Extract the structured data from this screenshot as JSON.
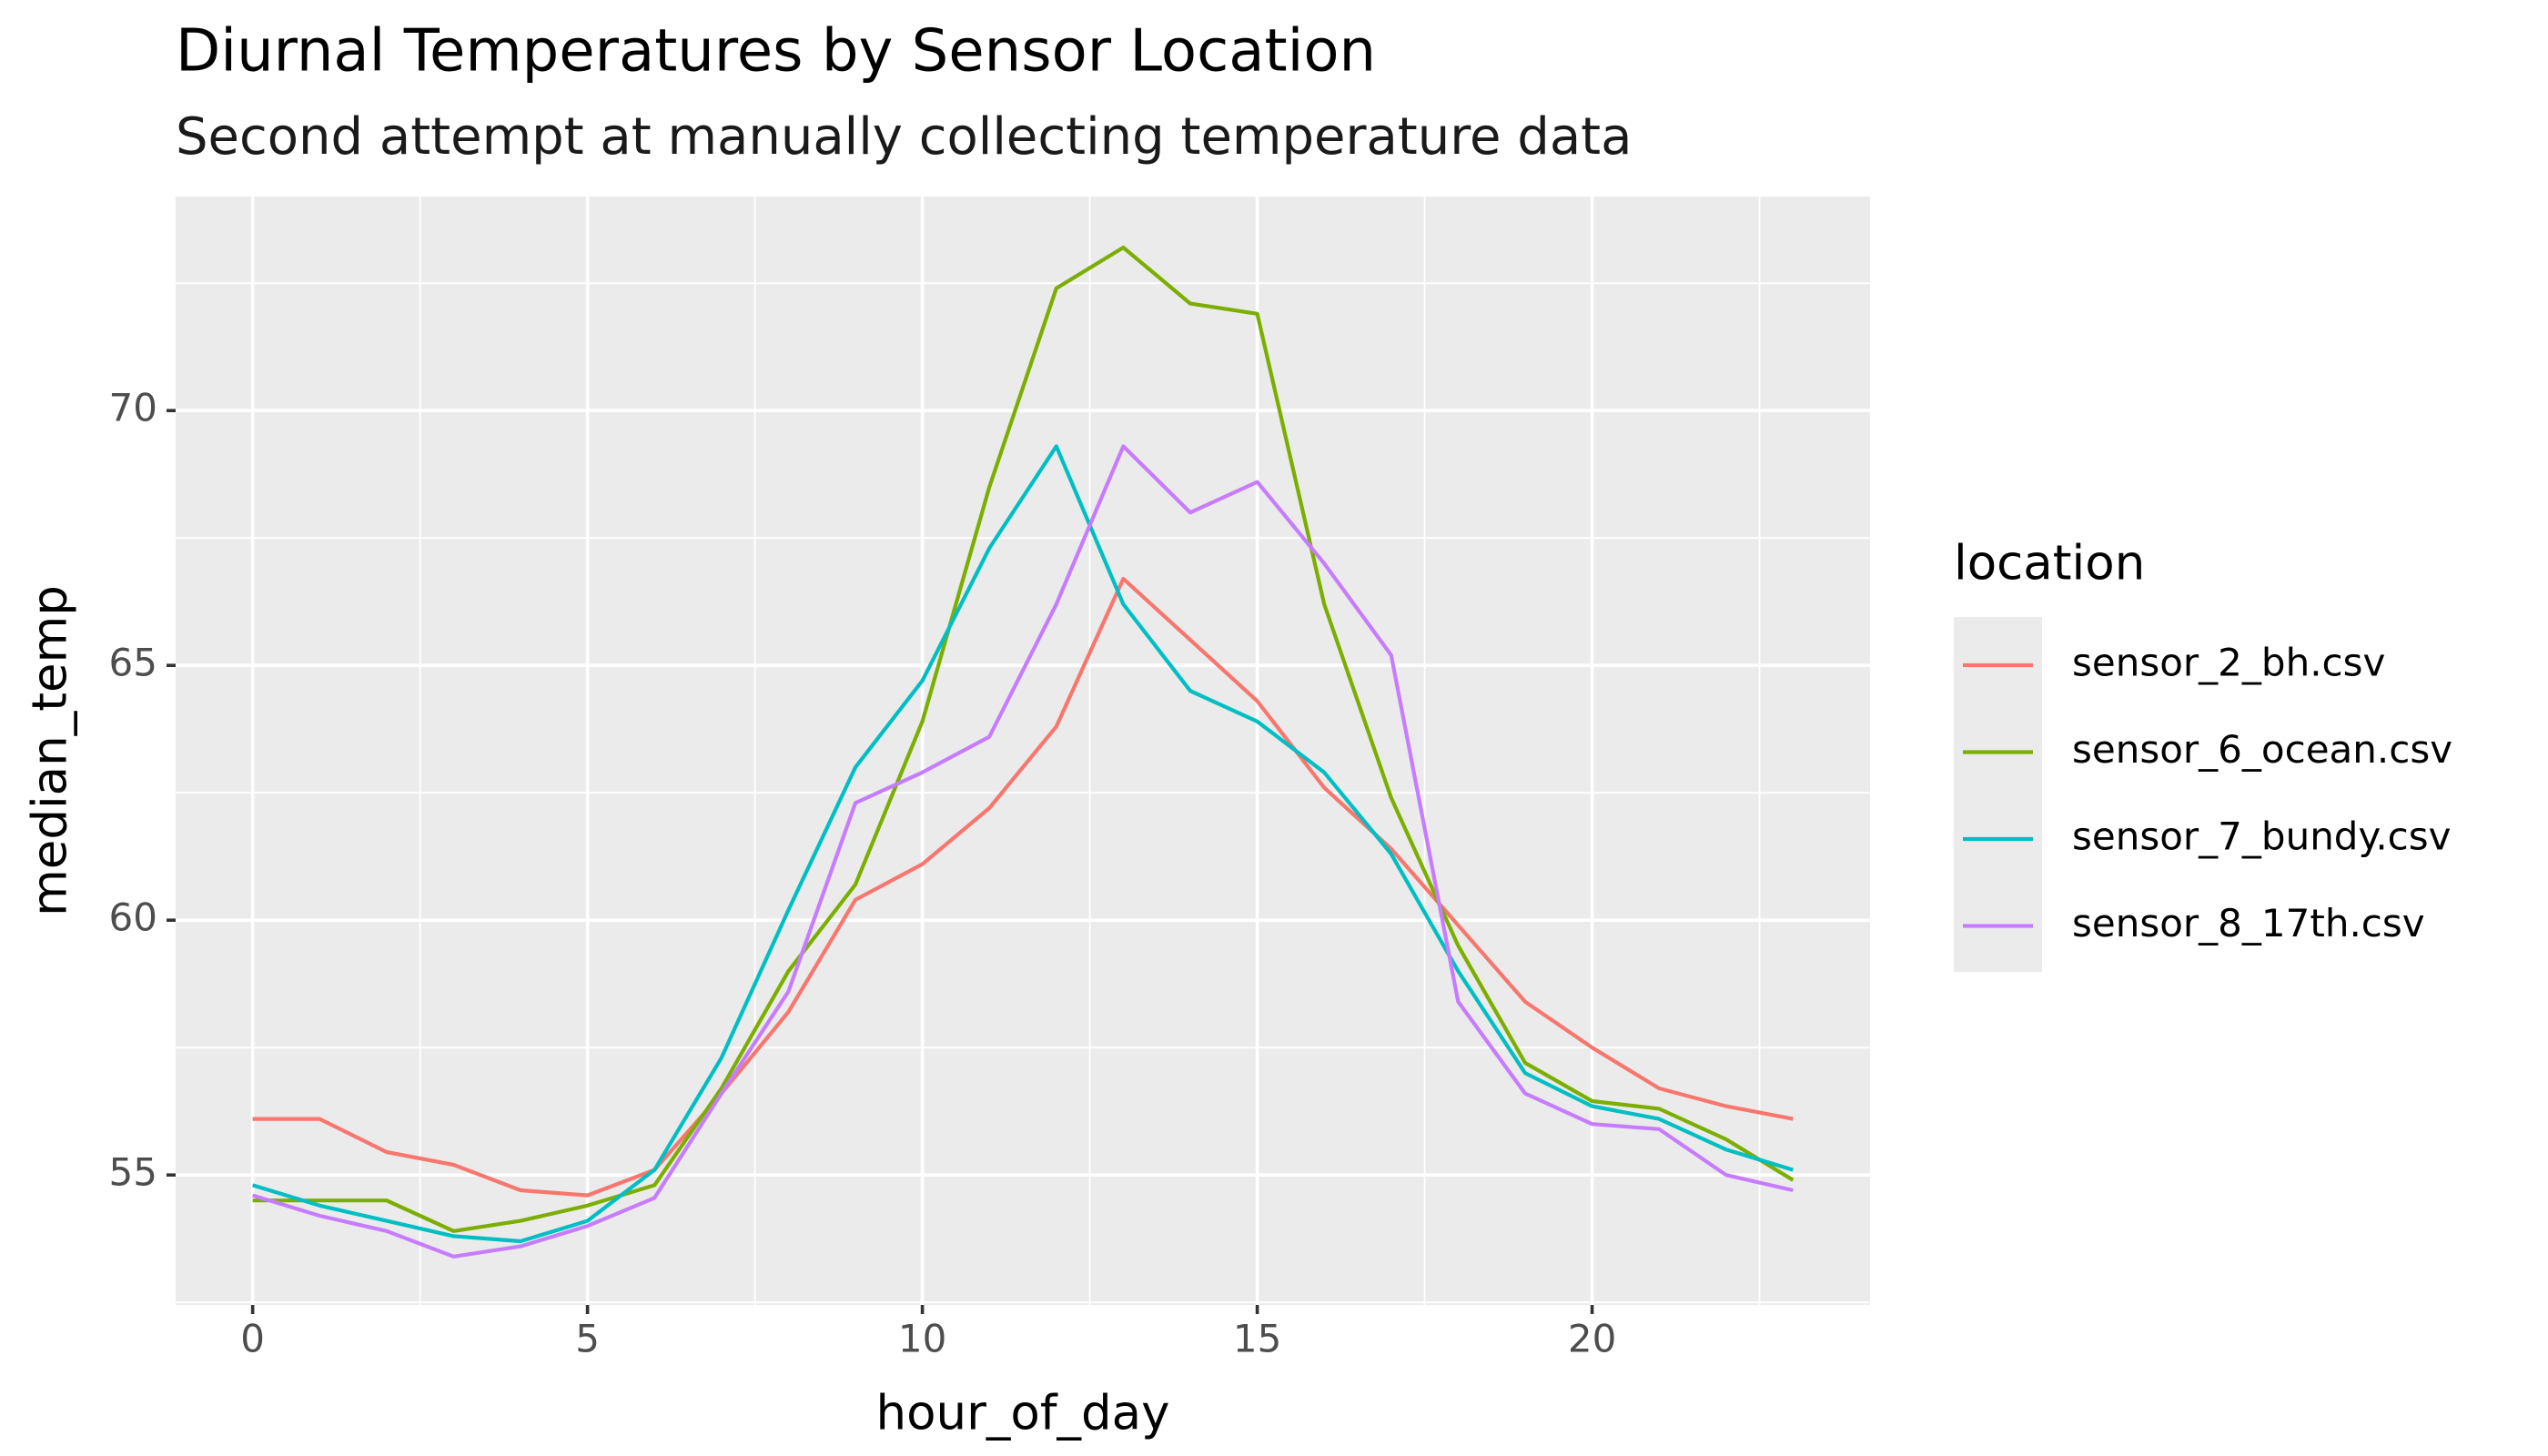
{
  "chart_data": {
    "type": "line",
    "title": "Diurnal Temperatures by Sensor Location",
    "subtitle": "Second attempt at manually collecting temperature data",
    "x_label": "hour_of_day",
    "y_label": "median_temp",
    "legend_title": "location",
    "legend_position": "right",
    "x": [
      0,
      1,
      2,
      3,
      4,
      5,
      6,
      7,
      8,
      9,
      10,
      11,
      12,
      13,
      14,
      15,
      16,
      17,
      18,
      19,
      20,
      21,
      22,
      23
    ],
    "series": [
      {
        "name": "sensor_2_bh.csv",
        "color": "#F8766D",
        "values": [
          56.1,
          56.1,
          55.45,
          55.2,
          54.7,
          54.6,
          55.1,
          56.6,
          58.2,
          60.4,
          61.1,
          62.2,
          63.8,
          66.7,
          65.5,
          64.3,
          62.6,
          61.4,
          59.9,
          58.4,
          57.5,
          56.7,
          56.35,
          56.1
        ]
      },
      {
        "name": "sensor_6_ocean.csv",
        "color": "#7CAE00",
        "values": [
          54.5,
          54.5,
          54.5,
          53.9,
          54.1,
          54.4,
          54.8,
          56.7,
          59.0,
          60.7,
          63.9,
          68.5,
          72.4,
          73.2,
          72.1,
          71.9,
          66.2,
          62.4,
          59.5,
          57.2,
          56.45,
          56.3,
          55.7,
          54.9
        ]
      },
      {
        "name": "sensor_7_bundy.csv",
        "color": "#00BFC4",
        "values": [
          54.8,
          54.4,
          54.1,
          53.8,
          53.7,
          54.1,
          55.1,
          57.3,
          60.2,
          63.0,
          64.7,
          67.3,
          69.3,
          66.2,
          64.5,
          63.9,
          62.9,
          61.3,
          59.0,
          57.0,
          56.35,
          56.1,
          55.5,
          55.1
        ]
      },
      {
        "name": "sensor_8_17th.csv",
        "color": "#C77CFF",
        "values": [
          54.6,
          54.2,
          53.9,
          53.4,
          53.6,
          54.0,
          54.55,
          56.6,
          58.6,
          62.3,
          62.9,
          63.6,
          66.2,
          69.3,
          68.0,
          68.6,
          67.0,
          65.2,
          58.4,
          56.6,
          56.0,
          55.9,
          55.0,
          54.7
        ]
      }
    ],
    "xlim": [
      -1.15,
      24.15
    ],
    "xticks": [
      0,
      5,
      10,
      15,
      20
    ],
    "x_minor_ticks": [
      2.5,
      7.5,
      12.5,
      17.5,
      22.5
    ],
    "ylim": [
      52.45,
      74.2
    ],
    "yticks": [
      55,
      60,
      65,
      70
    ],
    "y_minor_ticks": [
      52.5,
      57.5,
      62.5,
      67.5,
      72.5
    ],
    "grid": true
  }
}
